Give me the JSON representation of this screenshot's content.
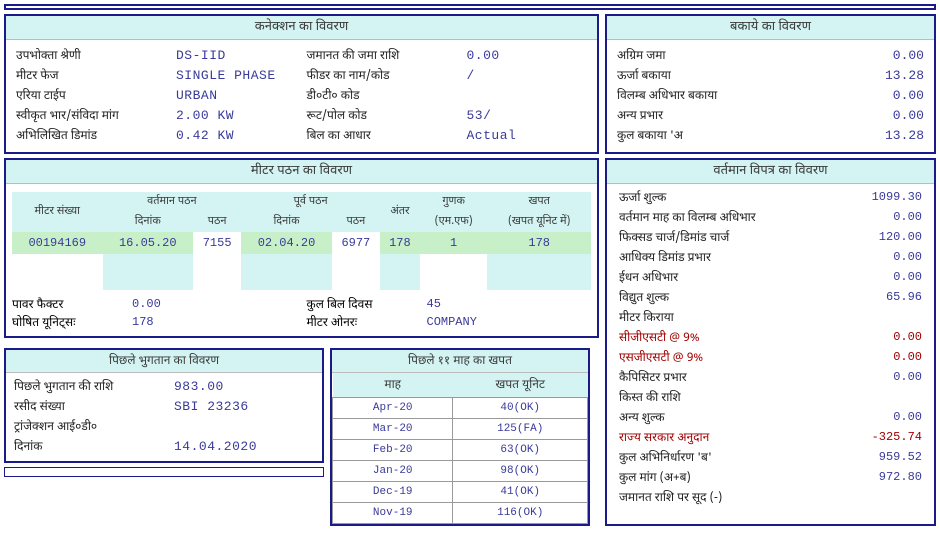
{
  "sections": {
    "connection": "कनेक्शन का विवरण",
    "arrears": "बकाये का विवरण",
    "meter": "मीटर पठन का विवरण",
    "current_bill": "वर्तमान विपत्र का विवरण",
    "last_payment": "पिछले भुगतान का विवरण",
    "history": "पिछले ११ माह का खपत"
  },
  "connection": {
    "left": [
      {
        "label": "उपभोक्ता श्रेणी",
        "value": "DS-IID"
      },
      {
        "label": "मीटर फेज",
        "value": "SINGLE PHASE"
      },
      {
        "label": "एरिया टाईप",
        "value": "URBAN"
      },
      {
        "label": "स्वीकृत भार/संविदा मांग",
        "value": "2.00 KW"
      },
      {
        "label": "अभिलिखित डिमांड",
        "value": "0.42 KW"
      }
    ],
    "right": [
      {
        "label": "जमानत की जमा राशि",
        "value": "0.00"
      },
      {
        "label": "फीडर का नाम/कोड",
        "value": "/"
      },
      {
        "label": "डी०टी० कोड",
        "value": ""
      },
      {
        "label": "रूट/पोल कोड",
        "value": "53/"
      },
      {
        "label": "बिल का आधार",
        "value": "Actual"
      }
    ]
  },
  "arrears": [
    {
      "label": "अग्रिम जमा",
      "value": "0.00"
    },
    {
      "label": "ऊर्जा बकाया",
      "value": "13.28"
    },
    {
      "label": "विलम्ब अधिभार बकाया",
      "value": "0.00"
    },
    {
      "label": "अन्य प्रभार",
      "value": "0.00"
    },
    {
      "label": "कुल बकाया 'अ",
      "value": "13.28"
    }
  ],
  "meter_headers": {
    "no": "मीटर संख्या",
    "cur": "वर्तमान पठन",
    "prev": "पूर्व पठन",
    "diff": "अंतर",
    "mf": "गुणक",
    "mf_sub": "(एम.एफ)",
    "cons": "खपत",
    "cons_sub": "(खपत यूनिट में)",
    "date": "दिनांक",
    "read": "पठन"
  },
  "meter_row": {
    "no": "00194169",
    "cur_date": "16.05.20",
    "cur_read": "7155",
    "prev_date": "02.04.20",
    "prev_read": "6977",
    "diff": "178",
    "mf": "1",
    "cons": "178"
  },
  "meter_footer": {
    "pf_l": "पावर फैक्टर",
    "pf_v": "0.00",
    "units_l": "घोषित यूनिट्सः",
    "units_v": "178",
    "days_l": "कुल बिल दिवस",
    "days_v": "45",
    "owner_l": "मीटर ओनरः",
    "owner_v": "COMPANY"
  },
  "charges": [
    {
      "label": "ऊर्जा शुल्क",
      "value": "1099.30"
    },
    {
      "label": "वर्तमान माह का विलम्ब अधिभार",
      "value": "0.00"
    },
    {
      "label": "फिक्सड चार्ज/डिमांड चार्ज",
      "value": "120.00"
    },
    {
      "label": "आधिक्य डिमांड प्रभार",
      "value": "0.00"
    },
    {
      "label": "ईधन अधिभार",
      "value": "0.00"
    },
    {
      "label": "विद्युत शुल्क",
      "value": "65.96"
    },
    {
      "label": "मीटर किराया",
      "value": ""
    },
    {
      "label": "सीजीएसटी  @ 9%",
      "value": "0.00",
      "red": true
    },
    {
      "label": "एसजीएसटी  @ 9%",
      "value": "0.00",
      "red": true
    },
    {
      "label": "कैपिसिटर प्रभार",
      "value": "0.00"
    },
    {
      "label": "किस्त की राशि",
      "value": ""
    },
    {
      "label": "अन्य शुल्क",
      "value": "0.00"
    },
    {
      "label": "राज्य सरकार अनुदान",
      "value": "-325.74",
      "red": true
    },
    {
      "label": "कुल अभिनिर्धारण 'ब'",
      "value": "959.52"
    },
    {
      "label": "कुल मांग (अ+ब)",
      "value": "972.80"
    },
    {
      "label": "जमानत राशि पर सूद (-)",
      "value": ""
    }
  ],
  "last_payment": [
    {
      "label": "पिछले भुगतान की राशि",
      "value": "983.00"
    },
    {
      "label": "रसीद संख्या",
      "value": "SBI      23236"
    },
    {
      "label": "ट्रांजेक्शन आई०डी०",
      "value": ""
    },
    {
      "label": "दिनांक",
      "value": "14.04.2020"
    }
  ],
  "history_headers": {
    "month": "माह",
    "units": "खपत यूनिट"
  },
  "history": [
    {
      "m": "Apr-20",
      "u": "40(OK)"
    },
    {
      "m": "Mar-20",
      "u": "125(FA)"
    },
    {
      "m": "Feb-20",
      "u": "63(OK)"
    },
    {
      "m": "Jan-20",
      "u": "98(OK)"
    },
    {
      "m": "Dec-19",
      "u": "41(OK)"
    },
    {
      "m": "Nov-19",
      "u": "116(OK)"
    }
  ]
}
